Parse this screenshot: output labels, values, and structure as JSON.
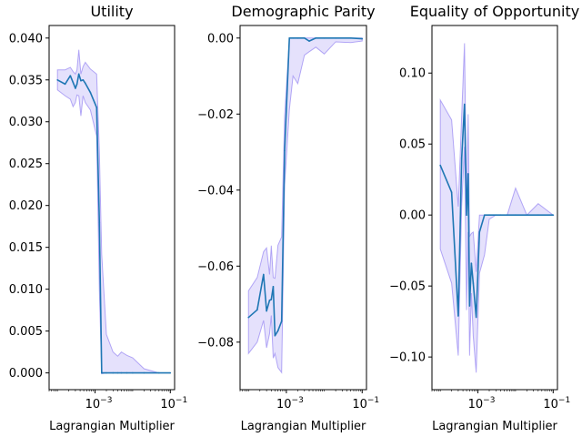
{
  "chart_data": [
    {
      "type": "line",
      "title": "Utility",
      "xlabel": "Lagrangian Multiplier",
      "ylabel": "",
      "xscale": "log",
      "xlim": [
        6e-05,
        0.13
      ],
      "ylim": [
        -0.002,
        0.0415
      ],
      "xticks": [
        {
          "value": 0.001,
          "base": "10",
          "exp": "−3"
        },
        {
          "value": 0.1,
          "base": "10",
          "exp": "−1"
        }
      ],
      "yticks": [
        {
          "value": 0.0,
          "label": "0.000"
        },
        {
          "value": 0.005,
          "label": "0.005"
        },
        {
          "value": 0.01,
          "label": "0.010"
        },
        {
          "value": 0.015,
          "label": "0.015"
        },
        {
          "value": 0.02,
          "label": "0.020"
        },
        {
          "value": 0.025,
          "label": "0.025"
        },
        {
          "value": 0.03,
          "label": "0.030"
        },
        {
          "value": 0.035,
          "label": "0.035"
        },
        {
          "value": 0.04,
          "label": "0.040"
        }
      ],
      "series": [
        {
          "line_color": "#1f77b4",
          "band_color": "#7b68ee",
          "x": [
            0.0001,
            0.00016,
            0.00022,
            0.00026,
            0.0003,
            0.00033,
            0.00037,
            0.00042,
            0.00048,
            0.00055,
            0.00075,
            0.0011,
            0.0013,
            0.0015,
            0.002,
            0.003,
            0.004,
            0.005,
            0.007,
            0.01,
            0.02,
            0.05,
            0.1
          ],
          "y": [
            0.035,
            0.0345,
            0.0355,
            0.0347,
            0.034,
            0.0345,
            0.0357,
            0.0349,
            0.035,
            0.0346,
            0.0335,
            0.0317,
            0.018,
            0.0,
            0.0,
            0.0,
            0.0,
            0.0,
            0.0,
            0.0,
            0.0,
            0.0,
            0.0
          ],
          "upper": [
            0.0362,
            0.0362,
            0.0365,
            0.036,
            0.0357,
            0.0362,
            0.0386,
            0.0357,
            0.0366,
            0.0371,
            0.0363,
            0.0357,
            0.0265,
            0.0142,
            0.0046,
            0.0025,
            0.002,
            0.0025,
            0.0021,
            0.0018,
            0.0005,
            0.0,
            0.0
          ],
          "lower": [
            0.0338,
            0.0331,
            0.0327,
            0.0318,
            0.0323,
            0.0332,
            0.0331,
            0.0307,
            0.0331,
            0.0323,
            0.0314,
            0.0283,
            0.0098,
            -0.0001,
            0.0,
            0.0,
            0.0,
            0.0,
            0.0,
            0.0,
            0.0,
            0.0,
            0.0
          ]
        }
      ]
    },
    {
      "type": "line",
      "title": "Demographic Parity",
      "xlabel": "Lagrangian Multiplier",
      "ylabel": "",
      "xscale": "log",
      "xlim": [
        6e-05,
        0.13
      ],
      "ylim": [
        -0.0925,
        0.0033
      ],
      "xticks": [
        {
          "value": 0.001,
          "base": "10",
          "exp": "−3"
        },
        {
          "value": 0.1,
          "base": "10",
          "exp": "−1"
        }
      ],
      "yticks": [
        {
          "value": -0.08,
          "label": "−0.08"
        },
        {
          "value": -0.06,
          "label": "−0.06"
        },
        {
          "value": -0.04,
          "label": "−0.04"
        },
        {
          "value": -0.02,
          "label": "−0.02"
        },
        {
          "value": 0.0,
          "label": "0.00"
        }
      ],
      "series": [
        {
          "line_color": "#1f77b4",
          "band_color": "#7b68ee",
          "x": [
            0.0001,
            0.00017,
            0.00025,
            0.0003,
            0.00036,
            0.0004,
            0.00045,
            0.0005,
            0.0006,
            0.00075,
            0.0009,
            0.0012,
            0.0015,
            0.002,
            0.003,
            0.004,
            0.006,
            0.01,
            0.02,
            0.05,
            0.1
          ],
          "y": [
            -0.0735,
            -0.0715,
            -0.0622,
            -0.0718,
            -0.069,
            -0.0688,
            -0.0654,
            -0.0783,
            -0.077,
            -0.0745,
            -0.0296,
            0.0,
            0.0,
            0.0,
            0.0,
            -0.0008,
            0.0,
            0.0,
            0.0,
            0.0,
            -0.0002
          ],
          "upper": [
            -0.0665,
            -0.063,
            -0.0562,
            -0.0552,
            -0.0622,
            -0.0546,
            -0.063,
            -0.0632,
            -0.0545,
            -0.0523,
            -0.0205,
            0.0,
            0.0,
            0.0,
            0.0,
            0.0,
            0.0,
            0.0,
            0.0,
            0.0,
            0.0
          ],
          "lower": [
            -0.083,
            -0.08,
            -0.0743,
            -0.0815,
            -0.0778,
            -0.073,
            -0.0842,
            -0.083,
            -0.0867,
            -0.088,
            -0.0386,
            -0.0188,
            -0.01,
            -0.012,
            -0.0045,
            -0.0036,
            -0.0024,
            -0.0042,
            -0.001,
            -0.0012,
            -0.0008
          ]
        }
      ]
    },
    {
      "type": "line",
      "title": "Equality of Opportunity",
      "xlabel": "Lagrangian Multiplier",
      "ylabel": "",
      "xscale": "log",
      "xlim": [
        6e-05,
        0.13
      ],
      "ylim": [
        -0.123,
        0.1335
      ],
      "xticks": [
        {
          "value": 0.001,
          "base": "10",
          "exp": "−3"
        },
        {
          "value": 0.1,
          "base": "10",
          "exp": "−1"
        }
      ],
      "yticks": [
        {
          "value": -0.1,
          "label": "−0.10"
        },
        {
          "value": -0.05,
          "label": "−0.05"
        },
        {
          "value": 0.0,
          "label": "0.00"
        },
        {
          "value": 0.05,
          "label": "0.05"
        },
        {
          "value": 0.1,
          "label": "0.10"
        }
      ],
      "series": [
        {
          "line_color": "#1f77b4",
          "band_color": "#7b68ee",
          "x": [
            0.0001,
            0.0002,
            0.0003,
            0.00037,
            0.00044,
            0.0005,
            0.00055,
            0.0006,
            0.00067,
            0.00075,
            0.0009,
            0.0011,
            0.0015,
            0.002,
            0.003,
            0.004,
            0.006,
            0.01,
            0.02,
            0.04,
            0.1
          ],
          "y": [
            0.035,
            0.016,
            -0.071,
            0.04,
            0.078,
            0.0,
            0.029,
            -0.064,
            -0.034,
            -0.048,
            -0.072,
            -0.012,
            0.0,
            0.0,
            0.0,
            0.0,
            0.0,
            0.0,
            0.0,
            0.0,
            0.0
          ],
          "upper": [
            0.081,
            0.067,
            0.006,
            0.07,
            0.121,
            0.008,
            0.071,
            -0.015,
            -0.013,
            -0.012,
            -0.04,
            0.0,
            0.0,
            0.0,
            0.0,
            0.0,
            0.0,
            0.019,
            0.0,
            0.008,
            0.0
          ],
          "lower": [
            -0.024,
            -0.048,
            -0.099,
            0.006,
            0.048,
            -0.067,
            -0.012,
            -0.099,
            -0.055,
            -0.085,
            -0.111,
            -0.041,
            -0.028,
            -0.003,
            0.0,
            0.0,
            0.0,
            0.0,
            0.0,
            0.0,
            0.0
          ]
        }
      ]
    }
  ]
}
